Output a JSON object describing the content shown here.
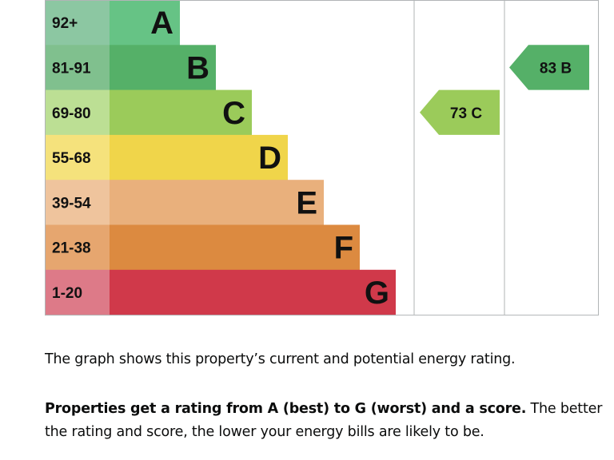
{
  "chart_data": {
    "type": "bar",
    "bands": [
      {
        "score": "92+",
        "letter": "A",
        "color": "#66c385",
        "band_color": "#8cc7a2"
      },
      {
        "score": "81-91",
        "letter": "B",
        "color": "#55b068",
        "band_color": "#80c08e"
      },
      {
        "score": "69-80",
        "letter": "C",
        "color": "#9bcb5a",
        "band_color": "#bcdf94"
      },
      {
        "score": "55-68",
        "letter": "D",
        "color": "#f0d54a",
        "band_color": "#f5e27c"
      },
      {
        "score": "39-54",
        "letter": "E",
        "color": "#e9b07c",
        "band_color": "#efc49d"
      },
      {
        "score": "21-38",
        "letter": "F",
        "color": "#dc8a40",
        "band_color": "#e6a66f"
      },
      {
        "score": "1-20",
        "letter": "G",
        "color": "#d0394a",
        "band_color": "#dd7a88"
      }
    ],
    "current": {
      "score": 73,
      "letter": "C",
      "label": "73  C"
    },
    "potential": {
      "score": 83,
      "letter": "B",
      "label": "83  B"
    }
  },
  "text": {
    "intro": "The graph shows this property’s current and potential energy rating.",
    "bold": "Properties get a rating from A (best) to G (worst) and a score.",
    "rest": " The better the rating and score, the lower your energy bills are likely to be."
  }
}
